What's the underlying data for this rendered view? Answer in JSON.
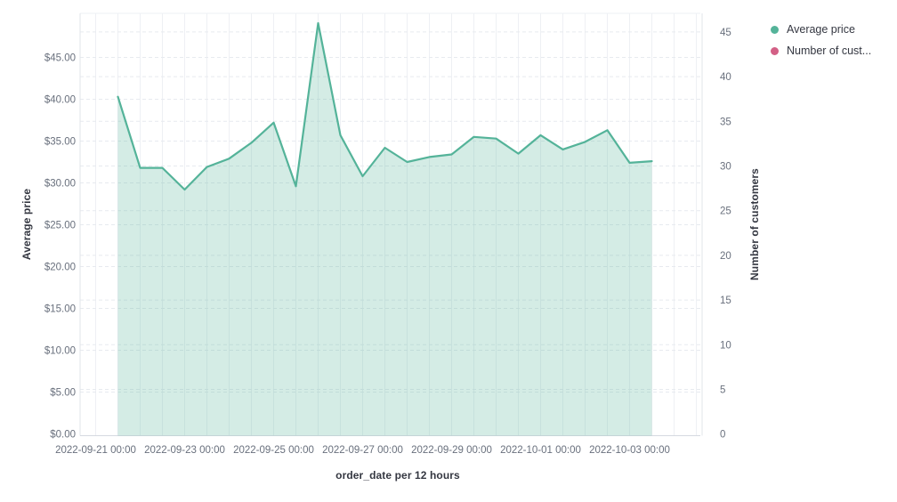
{
  "legend": {
    "position": "top-right",
    "items": [
      {
        "label": "Average price",
        "color": "#54b399"
      },
      {
        "label": "Number of cust...",
        "color": "#d36086"
      }
    ]
  },
  "axes": {
    "left_title": "Average price",
    "right_title": "Number of customers",
    "x_title": "order_date per 12 hours"
  },
  "chart_data": {
    "type": "area",
    "title": "",
    "xlabel": "order_date per 12 hours",
    "ylabel_left": "Average price",
    "ylabel_right": "Number of customers",
    "x_interval": "12 hours",
    "grid": true,
    "legend_position": "right",
    "x": [
      "2022-09-21 12:00",
      "2022-09-22 00:00",
      "2022-09-22 12:00",
      "2022-09-23 00:00",
      "2022-09-23 12:00",
      "2022-09-24 00:00",
      "2022-09-24 12:00",
      "2022-09-25 00:00",
      "2022-09-25 12:00",
      "2022-09-26 00:00",
      "2022-09-26 12:00",
      "2022-09-27 00:00",
      "2022-09-27 12:00",
      "2022-09-28 00:00",
      "2022-09-28 12:00",
      "2022-09-29 00:00",
      "2022-09-29 12:00",
      "2022-09-30 00:00",
      "2022-09-30 12:00",
      "2022-10-01 00:00",
      "2022-10-01 12:00",
      "2022-10-02 00:00",
      "2022-10-02 12:00",
      "2022-10-03 00:00",
      "2022-10-03 12:00"
    ],
    "series": [
      {
        "name": "Average price",
        "axis": "left",
        "color": "#54b399",
        "fill_opacity": 0.25,
        "values": [
          40.3,
          31.8,
          31.8,
          29.2,
          31.9,
          32.9,
          34.8,
          37.2,
          29.6,
          49.1,
          35.7,
          30.8,
          34.2,
          32.5,
          33.1,
          33.4,
          35.5,
          35.3,
          33.5,
          35.7,
          34.0,
          34.9,
          36.3,
          32.4,
          32.6
        ]
      },
      {
        "name": "Number of customers",
        "axis": "right",
        "color": "#d36086",
        "values": []
      }
    ],
    "y_left_ticks": [
      "$0.00",
      "$5.00",
      "$10.00",
      "$15.00",
      "$20.00",
      "$25.00",
      "$30.00",
      "$35.00",
      "$40.00",
      "$45.00"
    ],
    "y_right_ticks": [
      "0",
      "5",
      "10",
      "15",
      "20",
      "25",
      "30",
      "35",
      "40",
      "45"
    ],
    "x_tick_labels": [
      "2022-09-21 00:00",
      "2022-09-23 00:00",
      "2022-09-25 00:00",
      "2022-09-27 00:00",
      "2022-09-29 00:00",
      "2022-10-01 00:00",
      "2022-10-03 00:00"
    ],
    "y_left_lim": [
      0,
      45
    ],
    "y_right_lim": [
      0,
      45
    ]
  }
}
